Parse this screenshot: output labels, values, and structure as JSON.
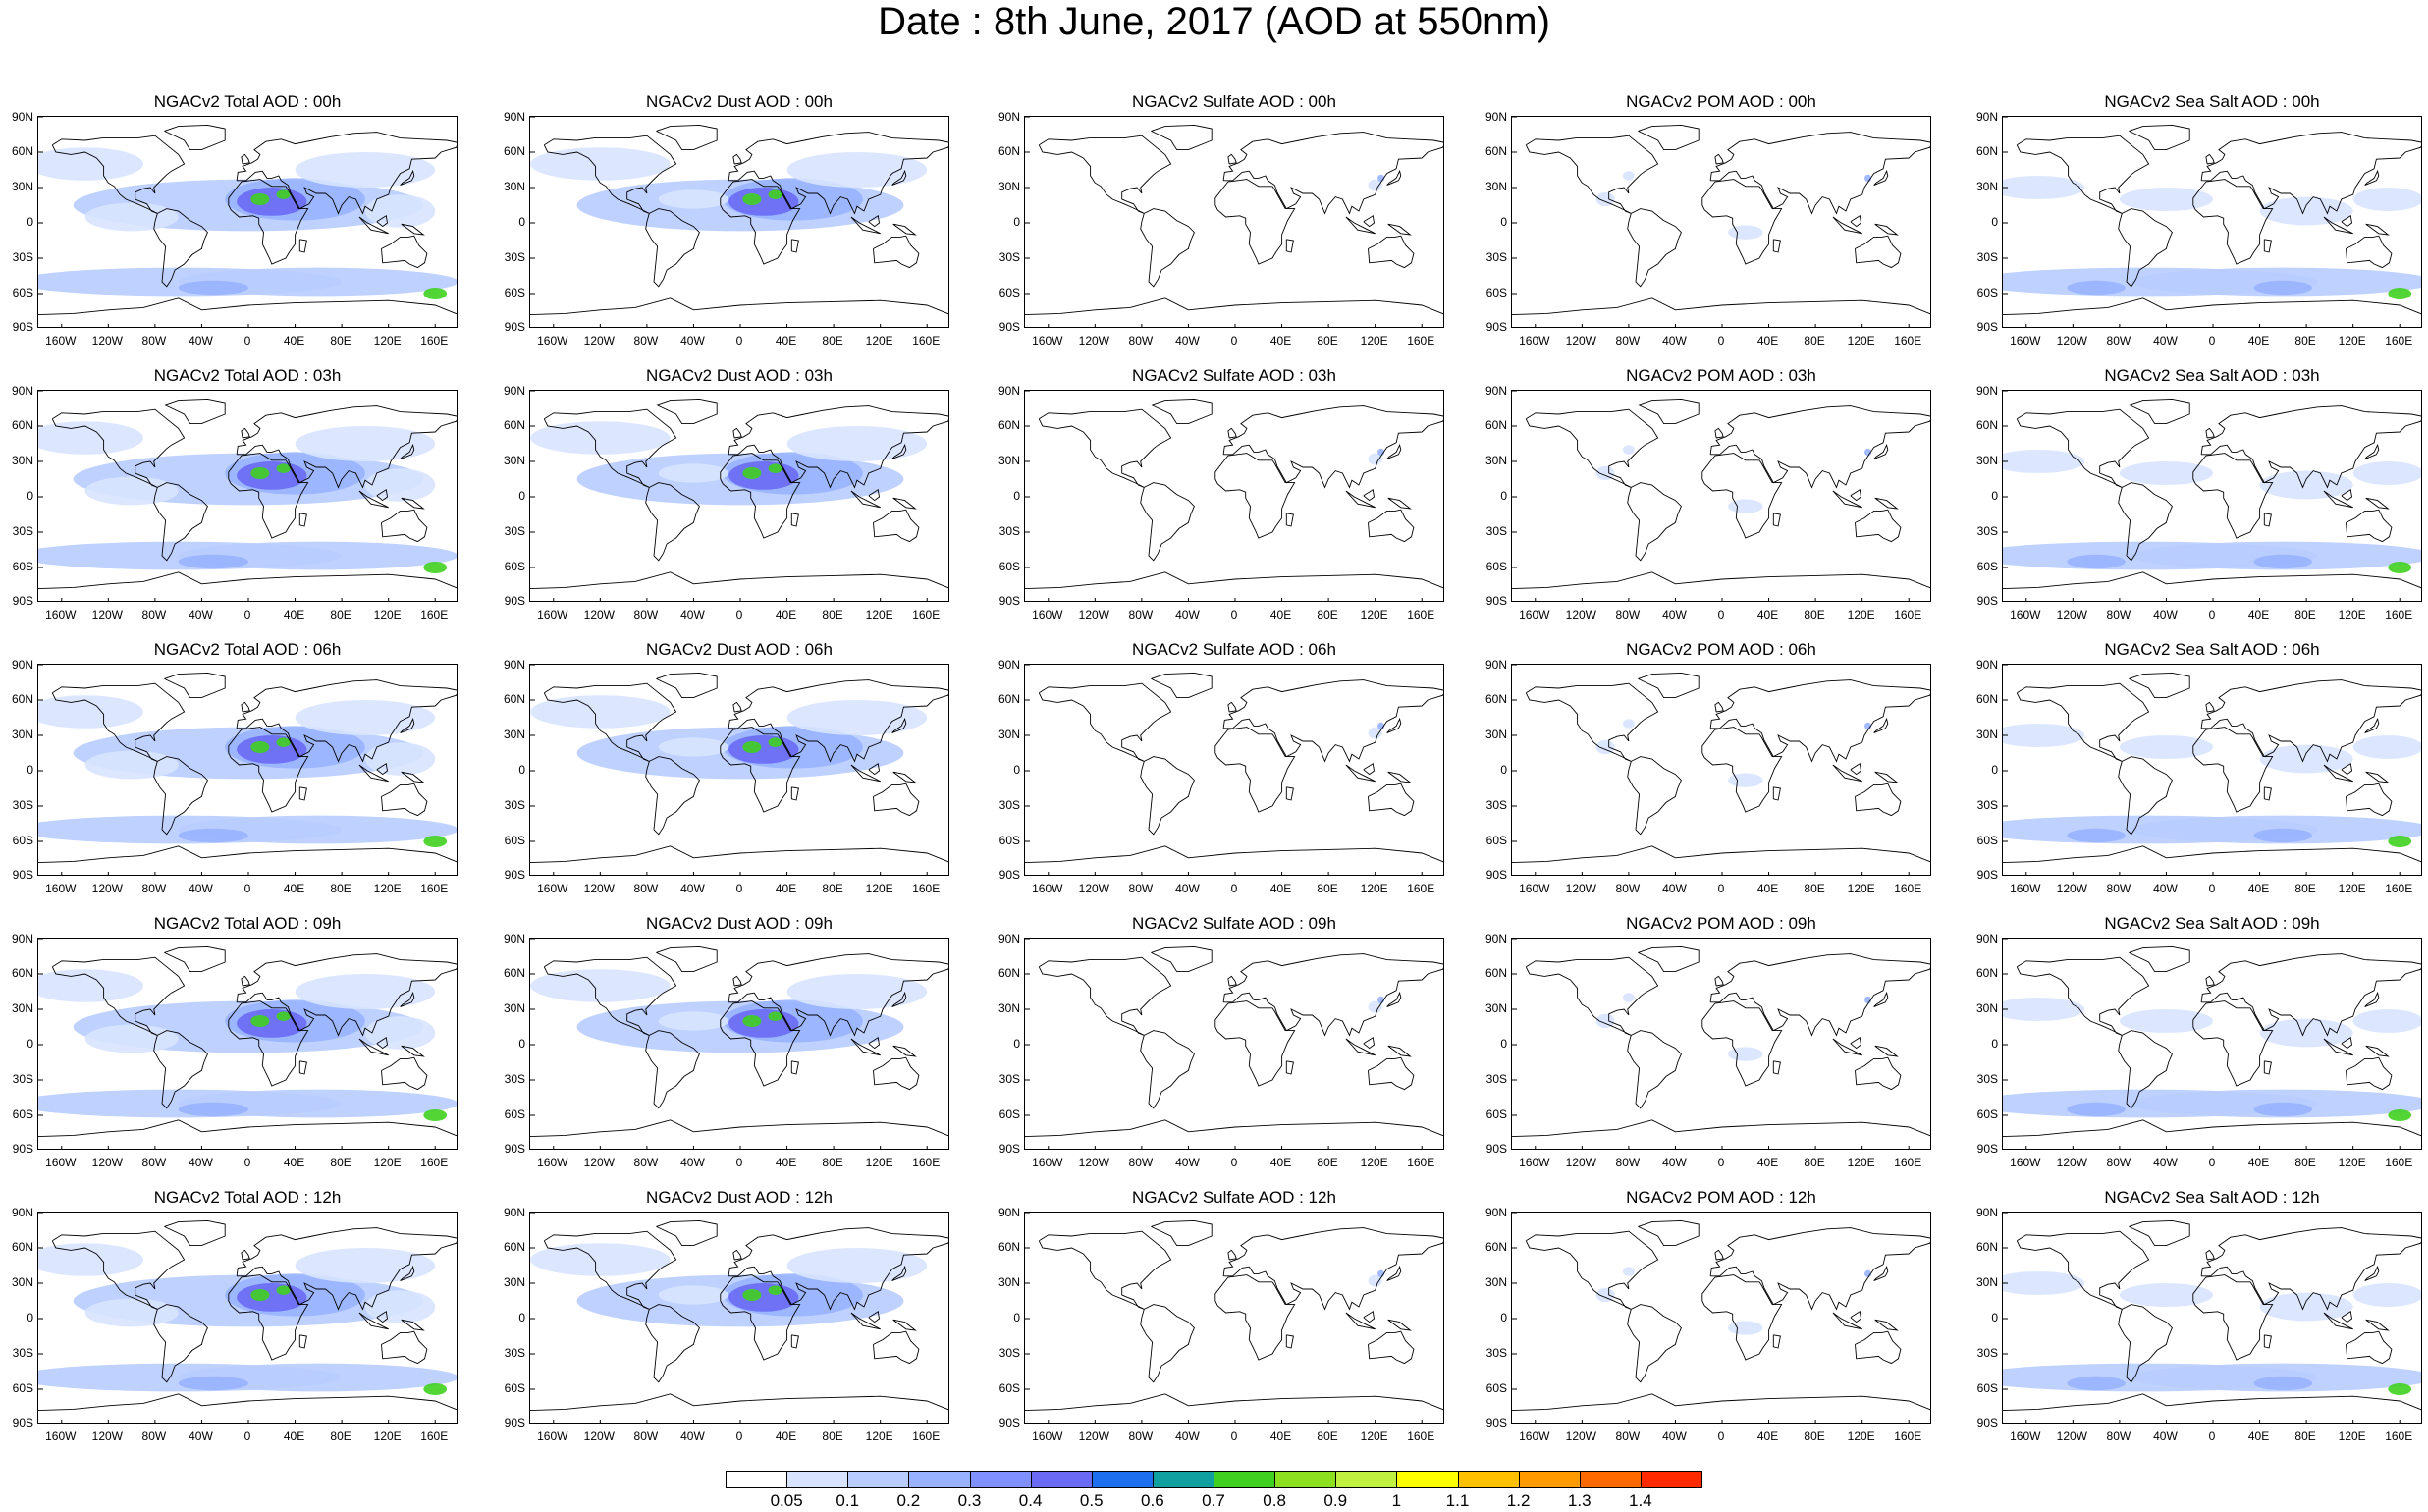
{
  "title": "Date : 8th June, 2017 (AOD at 550nm)",
  "lat_labels": [
    "90N",
    "60N",
    "30N",
    "0",
    "30S",
    "60S",
    "90S"
  ],
  "lon_labels": [
    "160W",
    "120W",
    "80W",
    "40W",
    "0",
    "40E",
    "80E",
    "120E",
    "160E"
  ],
  "rows": [
    {
      "time": "00h",
      "titles": [
        "NGACv2 Total AOD : 00h",
        "NGACv2 Dust AOD : 00h",
        "NGACv2 Sulfate AOD : 00h",
        "NGACv2 POM AOD : 00h",
        "NGACv2 Sea Salt AOD : 00h"
      ]
    },
    {
      "time": "03h",
      "titles": [
        "NGACv2 Total AOD : 03h",
        "NGACv2 Dust AOD : 03h",
        "NGACv2 Sulfate AOD : 03h",
        "NGACv2 POM AOD : 03h",
        "NGACv2 Sea Salt AOD : 03h"
      ]
    },
    {
      "time": "06h",
      "titles": [
        "NGACv2 Total AOD : 06h",
        "NGACv2 Dust AOD : 06h",
        "NGACv2 Sulfate AOD : 06h",
        "NGACv2 POM AOD : 06h",
        "NGACv2 Sea Salt AOD : 06h"
      ]
    },
    {
      "time": "09h",
      "titles": [
        "NGACv2 Total AOD : 09h",
        "NGACv2 Dust AOD : 09h",
        "NGACv2 Sulfate AOD : 09h",
        "NGACv2 POM AOD : 09h",
        "NGACv2 Sea Salt  AOD : 09h"
      ]
    },
    {
      "time": "12h",
      "titles": [
        "NGACv2 Total AOD :  12h",
        "NGACv2 Dust AOD : 12h",
        "NGACv2 Sulfate AOD : 12h",
        "NGACv2 POM  AOD : 12h",
        "NGACv2 Sea Salt  AOD : 12h"
      ]
    }
  ],
  "colorbar": {
    "labels": [
      "0.05",
      "0.1",
      "0.2",
      "0.3",
      "0.4",
      "0.5",
      "0.6",
      "0.7",
      "0.8",
      "0.9",
      "1",
      "1.1",
      "1.2",
      "1.3",
      "1.4"
    ],
    "colors": [
      "#ffffff",
      "#d8e4ff",
      "#b8ccff",
      "#98b2ff",
      "#8090ff",
      "#6a6af4",
      "#1e6ef0",
      "#10a0a0",
      "#40d020",
      "#8ce020",
      "#c0f040",
      "#ffff00",
      "#ffc000",
      "#ff9a00",
      "#ff6a00",
      "#ff2a00"
    ]
  },
  "field_colors": {
    "land_outline": "#000000",
    "background": "#ffffff",
    "haze_light": "#d8e4ff",
    "haze_mid": "#b8ccff",
    "haze_strong": "#98b2ff",
    "dust_core": "#6a6af4",
    "dust_peak": "#40d020"
  }
}
